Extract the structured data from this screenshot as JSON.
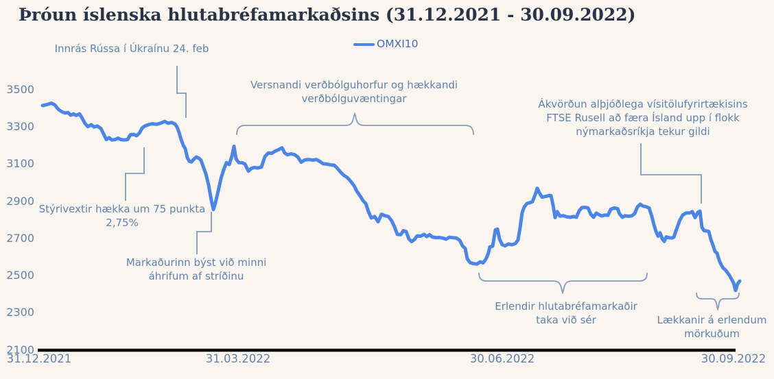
{
  "title": "Þróun íslenska hlutabréfamarkaðsins (31.12.2021 - 30.09.2022)",
  "legend": {
    "series_label": "OMXI10"
  },
  "colors": {
    "background": "#faf5ee",
    "line": "#4a86e8",
    "annotation_text": "#5d84b0",
    "axis_label_text": "#5d84b0",
    "legend_text": "#3f6eb3",
    "title_text": "#27344a",
    "leader": "#7e9cc2",
    "axis_line": "#0d0d0d"
  },
  "annotations": {
    "invasion": {
      "text": "Innrás Rússa í Úkraínu 24. feb"
    },
    "inflation": {
      "text": "Versnandi verðbólguhorfur og hækkandi\nverðbólguvæntingar"
    },
    "ftse": {
      "text": "Ákvörðun alþjóðlega vísitölufyrirtækisins\nFTSE Rusell að færa Ísland upp í flokk\nnýmarkaðsríkja tekur gildi"
    },
    "rates": {
      "text": "Stýrivextir hækka um 75 punkta\n2,75%"
    },
    "market_expects": {
      "text": "Markaðurinn býst við minni\náhrifum af stríðinu"
    },
    "foreign_recover": {
      "text": "Erlendir hlutabréfamarkaðir\ntaka við sér"
    },
    "foreign_declines": {
      "text": "Lækkanir á erlendum\nmörkuðum"
    }
  },
  "chart_data": {
    "type": "line",
    "title": "Þróun íslenska hlutabréfamarkaðsins (31.12.2021 - 30.09.2022)",
    "xlabel": "",
    "ylabel": "",
    "grid": false,
    "legend_position": "top-center",
    "x_ticks": [
      "31.12.2021",
      "31.03.2022",
      "30.06.2022",
      "30.09.2022"
    ],
    "y_ticks": [
      3500,
      3300,
      3100,
      2900,
      2700,
      2500,
      2300,
      2100
    ],
    "ylim": [
      2100,
      3500
    ],
    "x_axis_note": "points given as [pixel_x_along_time_axis, index_value]; time axis spans 31.12.2021 (x=62) to 30.09.2022 (x=1070)",
    "series": [
      {
        "name": "OMXI10",
        "points": [
          [
            62,
            3415
          ],
          [
            68,
            3420
          ],
          [
            75,
            3428
          ],
          [
            80,
            3418
          ],
          [
            85,
            3395
          ],
          [
            90,
            3382
          ],
          [
            95,
            3375
          ],
          [
            99,
            3378
          ],
          [
            103,
            3363
          ],
          [
            107,
            3370
          ],
          [
            111,
            3362
          ],
          [
            116,
            3370
          ],
          [
            120,
            3345
          ],
          [
            124,
            3318
          ],
          [
            128,
            3302
          ],
          [
            133,
            3312
          ],
          [
            137,
            3300
          ],
          [
            142,
            3305
          ],
          [
            147,
            3292
          ],
          [
            151,
            3262
          ],
          [
            155,
            3232
          ],
          [
            159,
            3242
          ],
          [
            163,
            3230
          ],
          [
            168,
            3232
          ],
          [
            172,
            3240
          ],
          [
            176,
            3232
          ],
          [
            181,
            3230
          ],
          [
            186,
            3232
          ],
          [
            190,
            3258
          ],
          [
            195,
            3260
          ],
          [
            199,
            3253
          ],
          [
            203,
            3266
          ],
          [
            207,
            3293
          ],
          [
            211,
            3305
          ],
          [
            216,
            3312
          ],
          [
            222,
            3317
          ],
          [
            228,
            3314
          ],
          [
            234,
            3320
          ],
          [
            240,
            3330
          ],
          [
            245,
            3320
          ],
          [
            250,
            3324
          ],
          [
            255,
            3316
          ],
          [
            258,
            3300
          ],
          [
            261,
            3270
          ],
          [
            264,
            3232
          ],
          [
            267,
            3202
          ],
          [
            270,
            3183
          ],
          [
            273,
            3135
          ],
          [
            276,
            3115
          ],
          [
            279,
            3112
          ],
          [
            282,
            3125
          ],
          [
            286,
            3138
          ],
          [
            290,
            3132
          ],
          [
            293,
            3120
          ],
          [
            296,
            3088
          ],
          [
            300,
            3048
          ],
          [
            304,
            2988
          ],
          [
            308,
            2905
          ],
          [
            311,
            2855
          ],
          [
            314,
            2892
          ],
          [
            318,
            2955
          ],
          [
            322,
            3022
          ],
          [
            326,
            3070
          ],
          [
            330,
            3108
          ],
          [
            334,
            3098
          ],
          [
            338,
            3142
          ],
          [
            341,
            3196
          ],
          [
            344,
            3128
          ],
          [
            348,
            3108
          ],
          [
            353,
            3107
          ],
          [
            357,
            3100
          ],
          [
            362,
            3062
          ],
          [
            366,
            3076
          ],
          [
            371,
            3082
          ],
          [
            376,
            3079
          ],
          [
            381,
            3084
          ],
          [
            386,
            3140
          ],
          [
            391,
            3160
          ],
          [
            396,
            3158
          ],
          [
            401,
            3170
          ],
          [
            406,
            3178
          ],
          [
            411,
            3188
          ],
          [
            415,
            3160
          ],
          [
            419,
            3150
          ],
          [
            424,
            3155
          ],
          [
            429,
            3151
          ],
          [
            434,
            3138
          ],
          [
            439,
            3110
          ],
          [
            444,
            3122
          ],
          [
            450,
            3125
          ],
          [
            456,
            3121
          ],
          [
            461,
            3125
          ],
          [
            466,
            3114
          ],
          [
            471,
            3102
          ],
          [
            476,
            3100
          ],
          [
            482,
            3096
          ],
          [
            487,
            3094
          ],
          [
            491,
            3080
          ],
          [
            496,
            3058
          ],
          [
            501,
            3040
          ],
          [
            506,
            3028
          ],
          [
            511,
            3008
          ],
          [
            516,
            2984
          ],
          [
            520,
            2954
          ],
          [
            525,
            2928
          ],
          [
            529,
            2904
          ],
          [
            533,
            2888
          ],
          [
            537,
            2844
          ],
          [
            541,
            2810
          ],
          [
            546,
            2818
          ],
          [
            551,
            2790
          ],
          [
            556,
            2830
          ],
          [
            561,
            2822
          ],
          [
            566,
            2818
          ],
          [
            571,
            2794
          ],
          [
            575,
            2762
          ],
          [
            579,
            2722
          ],
          [
            584,
            2720
          ],
          [
            588,
            2742
          ],
          [
            592,
            2736
          ],
          [
            596,
            2696
          ],
          [
            600,
            2683
          ],
          [
            604,
            2694
          ],
          [
            608,
            2714
          ],
          [
            613,
            2712
          ],
          [
            618,
            2722
          ],
          [
            622,
            2710
          ],
          [
            626,
            2720
          ],
          [
            630,
            2708
          ],
          [
            635,
            2704
          ],
          [
            640,
            2705
          ],
          [
            645,
            2702
          ],
          [
            650,
            2696
          ],
          [
            655,
            2706
          ],
          [
            660,
            2704
          ],
          [
            665,
            2702
          ],
          [
            670,
            2690
          ],
          [
            674,
            2660
          ],
          [
            678,
            2646
          ],
          [
            681,
            2590
          ],
          [
            685,
            2570
          ],
          [
            690,
            2564
          ],
          [
            695,
            2562
          ],
          [
            700,
            2574
          ],
          [
            704,
            2568
          ],
          [
            708,
            2588
          ],
          [
            711,
            2612
          ],
          [
            714,
            2654
          ],
          [
            718,
            2658
          ],
          [
            722,
            2746
          ],
          [
            725,
            2750
          ],
          [
            728,
            2696
          ],
          [
            732,
            2666
          ],
          [
            736,
            2660
          ],
          [
            741,
            2670
          ],
          [
            746,
            2666
          ],
          [
            751,
            2672
          ],
          [
            755,
            2692
          ],
          [
            758,
            2758
          ],
          [
            761,
            2838
          ],
          [
            764,
            2870
          ],
          [
            768,
            2888
          ],
          [
            772,
            2892
          ],
          [
            776,
            2898
          ],
          [
            780,
            2936
          ],
          [
            783,
            2970
          ],
          [
            786,
            2946
          ],
          [
            790,
            2922
          ],
          [
            795,
            2926
          ],
          [
            800,
            2930
          ],
          [
            803,
            2930
          ],
          [
            806,
            2880
          ],
          [
            809,
            2812
          ],
          [
            812,
            2844
          ],
          [
            816,
            2820
          ],
          [
            821,
            2822
          ],
          [
            826,
            2816
          ],
          [
            831,
            2814
          ],
          [
            836,
            2818
          ],
          [
            840,
            2814
          ],
          [
            844,
            2848
          ],
          [
            848,
            2866
          ],
          [
            853,
            2867
          ],
          [
            857,
            2864
          ],
          [
            861,
            2830
          ],
          [
            865,
            2814
          ],
          [
            869,
            2836
          ],
          [
            873,
            2828
          ],
          [
            877,
            2821
          ],
          [
            882,
            2826
          ],
          [
            886,
            2824
          ],
          [
            890,
            2856
          ],
          [
            895,
            2864
          ],
          [
            900,
            2860
          ],
          [
            903,
            2832
          ],
          [
            907,
            2814
          ],
          [
            911,
            2822
          ],
          [
            916,
            2819
          ],
          [
            921,
            2822
          ],
          [
            925,
            2834
          ],
          [
            929,
            2870
          ],
          [
            933,
            2884
          ],
          [
            937,
            2874
          ],
          [
            941,
            2871
          ],
          [
            946,
            2864
          ],
          [
            950,
            2818
          ],
          [
            953,
            2774
          ],
          [
            956,
            2738
          ],
          [
            959,
            2712
          ],
          [
            962,
            2730
          ],
          [
            965,
            2698
          ],
          [
            968,
            2684
          ],
          [
            971,
            2708
          ],
          [
            975,
            2704
          ],
          [
            979,
            2702
          ],
          [
            982,
            2706
          ],
          [
            985,
            2740
          ],
          [
            988,
            2770
          ],
          [
            991,
            2800
          ],
          [
            995,
            2826
          ],
          [
            1000,
            2837
          ],
          [
            1005,
            2837
          ],
          [
            1009,
            2844
          ],
          [
            1013,
            2812
          ],
          [
            1017,
            2840
          ],
          [
            1020,
            2847
          ],
          [
            1023,
            2760
          ],
          [
            1026,
            2742
          ],
          [
            1030,
            2740
          ],
          [
            1033,
            2737
          ],
          [
            1036,
            2694
          ],
          [
            1039,
            2664
          ],
          [
            1042,
            2630
          ],
          [
            1045,
            2621
          ],
          [
            1048,
            2584
          ],
          [
            1051,
            2558
          ],
          [
            1054,
            2540
          ],
          [
            1057,
            2531
          ],
          [
            1060,
            2517
          ],
          [
            1063,
            2501
          ],
          [
            1066,
            2481
          ],
          [
            1069,
            2461
          ],
          [
            1072,
            2420
          ],
          [
            1075,
            2456
          ],
          [
            1078,
            2470
          ]
        ]
      }
    ],
    "annotation_labels": [
      "Innrás Rússa í Úkraínu 24. feb",
      "Versnandi verðbólguhorfur og hækkandi verðbólguvæntingar",
      "Ákvörðun alþjóðlega vísitölufyrirtækisins FTSE Rusell að færa Ísland upp í flokk nýmarkaðsríkja tekur gildi",
      "Stýrivextir hækka um 75 punkta 2,75%",
      "Markaðurinn býst við minni áhrifum af stríðinu",
      "Erlendir hlutabréfamarkaðir taka við sér",
      "Lækkanir á erlendum mörkuðum"
    ]
  }
}
